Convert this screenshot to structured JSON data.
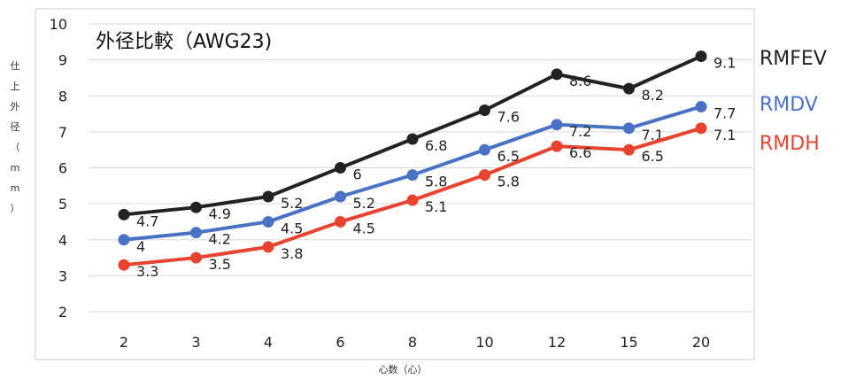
{
  "chart_data": {
    "type": "line",
    "title": "外径比較（AWG23)",
    "xlabel": "心数（心）",
    "ylabel": [
      "仕",
      "上",
      "外",
      "径",
      "（",
      "m",
      "m",
      "）"
    ],
    "categories": [
      "2",
      "3",
      "4",
      "6",
      "8",
      "10",
      "12",
      "15",
      "20"
    ],
    "ylim": [
      2,
      10
    ],
    "yticks": [
      "2",
      "3",
      "4",
      "5",
      "6",
      "7",
      "8",
      "9",
      "10"
    ],
    "grid": true,
    "legend": "right, at line ends",
    "series": [
      {
        "name": "RMFEV",
        "color": "#222222",
        "values": [
          4.7,
          4.9,
          5.2,
          6,
          6.8,
          7.6,
          8.6,
          8.2,
          9.1
        ],
        "labels": [
          "4.7",
          "4.9",
          "5.2",
          "6",
          "6.8",
          "7.6",
          "8.6",
          "8.2",
          "9.1"
        ]
      },
      {
        "name": "RMDV",
        "color": "#4a72c4",
        "values": [
          4,
          4.2,
          4.5,
          5.2,
          5.8,
          6.5,
          7.2,
          7.1,
          7.7
        ],
        "labels": [
          "4",
          "4.2",
          "4.5",
          "5.2",
          "5.8",
          "6.5",
          "7.2",
          "7.1",
          "7.7"
        ]
      },
      {
        "name": "RMDH",
        "color": "#e8432e",
        "values": [
          3.3,
          3.5,
          3.8,
          4.5,
          5.1,
          5.8,
          6.6,
          6.5,
          7.1
        ],
        "labels": [
          "3.3",
          "3.5",
          "3.8",
          "4.5",
          "5.1",
          "5.8",
          "6.6",
          "6.5",
          "7.1"
        ]
      }
    ]
  }
}
